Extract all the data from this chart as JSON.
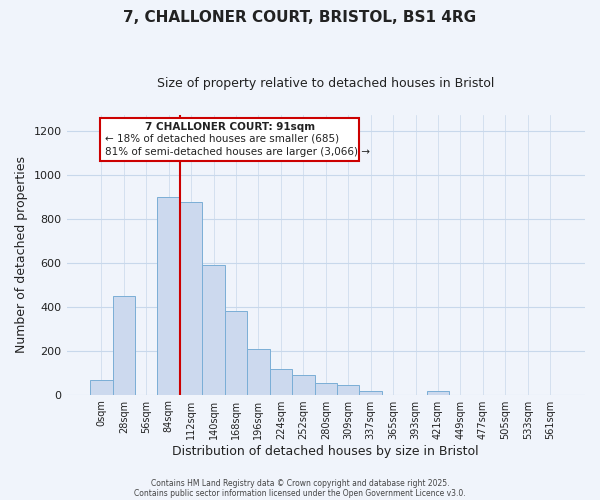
{
  "title": "7, CHALLONER COURT, BRISTOL, BS1 4RG",
  "subtitle": "Size of property relative to detached houses in Bristol",
  "xlabel": "Distribution of detached houses by size in Bristol",
  "ylabel": "Number of detached properties",
  "bar_labels": [
    "0sqm",
    "28sqm",
    "56sqm",
    "84sqm",
    "112sqm",
    "140sqm",
    "168sqm",
    "196sqm",
    "224sqm",
    "252sqm",
    "280sqm",
    "309sqm",
    "337sqm",
    "365sqm",
    "393sqm",
    "421sqm",
    "449sqm",
    "477sqm",
    "505sqm",
    "533sqm",
    "561sqm"
  ],
  "bar_values": [
    65,
    450,
    0,
    900,
    875,
    590,
    380,
    205,
    115,
    88,
    52,
    45,
    15,
    0,
    0,
    18,
    0,
    0,
    0,
    0,
    0
  ],
  "bar_color": "#ccd9ee",
  "bar_edge_color": "#7aaed6",
  "vline_x_index": 3,
  "vline_color": "#cc0000",
  "annotation_title": "7 CHALLONER COURT: 91sqm",
  "annotation_line1": "← 18% of detached houses are smaller (685)",
  "annotation_line2": "81% of semi-detached houses are larger (3,066) →",
  "annotation_box_color": "#ffffff",
  "annotation_box_edge": "#cc0000",
  "ylim": [
    0,
    1270
  ],
  "yticks": [
    0,
    200,
    400,
    600,
    800,
    1000,
    1200
  ],
  "footer1": "Contains HM Land Registry data © Crown copyright and database right 2025.",
  "footer2": "Contains public sector information licensed under the Open Government Licence v3.0.",
  "bg_color": "#f0f4fb",
  "grid_color": "#c8d8eb",
  "title_fontsize": 11,
  "subtitle_fontsize": 9
}
